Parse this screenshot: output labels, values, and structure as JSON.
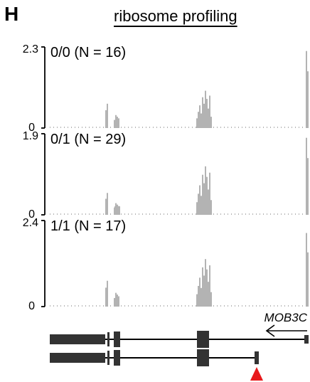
{
  "panel_letter": "H",
  "figure_title": "ribosome profiling",
  "chart_data": {
    "type": "bar",
    "title": "ribosome profiling",
    "xlabel": "",
    "ylabel": "",
    "grid": false,
    "tracks": [
      {
        "label": "0/0 (N = 16)",
        "ymax_label": "2.3",
        "ymin_label": "0",
        "ylim": [
          0,
          2.3
        ]
      },
      {
        "label": "0/1 (N = 29)",
        "ymax_label": "1.9",
        "ymin_label": "0",
        "ylim": [
          0,
          1.9
        ]
      },
      {
        "label": "1/1 (N = 17)",
        "ymax_label": "2.4",
        "ymin_label": "0",
        "ylim": [
          0,
          2.4
        ]
      }
    ],
    "gene": {
      "name": "MOB3C",
      "strand": "-"
    },
    "marker_color": "#e8191c",
    "signal_color": "#b3b3b3",
    "model_color": "#333333"
  }
}
